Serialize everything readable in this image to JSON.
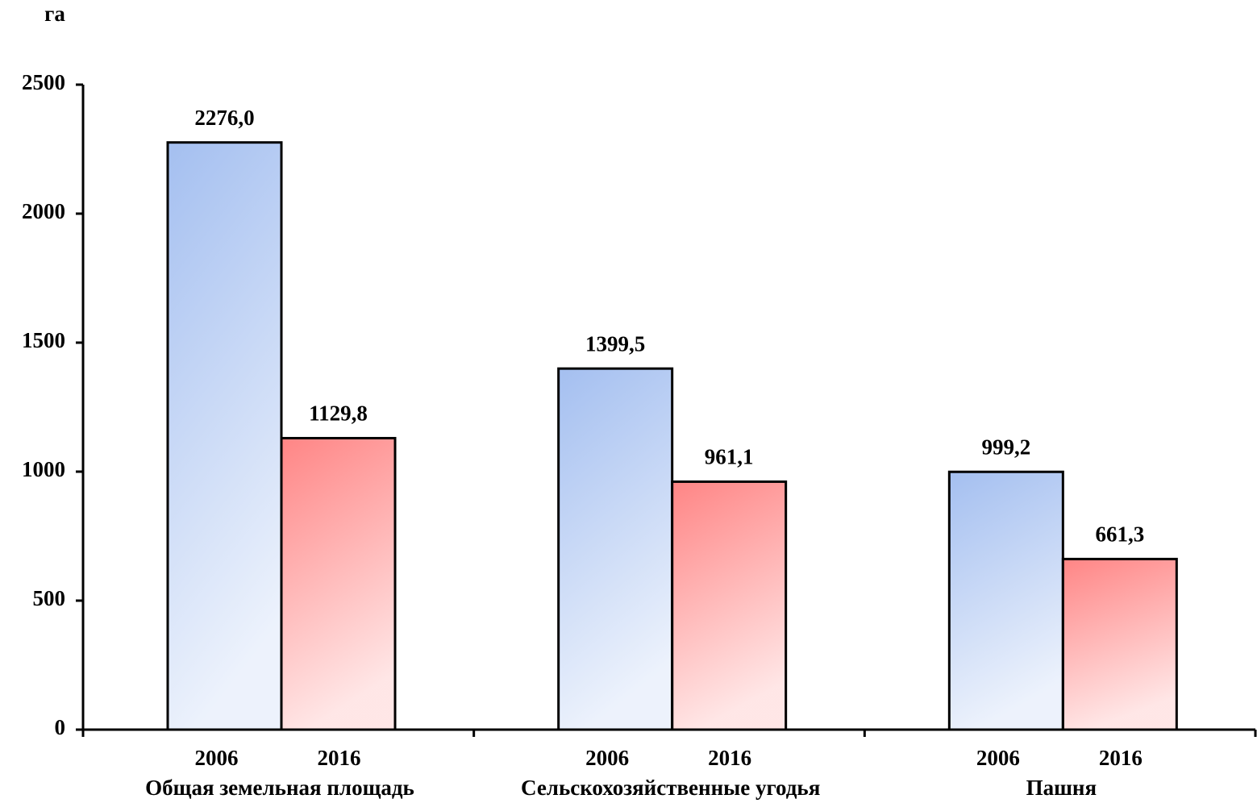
{
  "chart_data": {
    "type": "bar",
    "y_label": "га",
    "categories": [
      "Общая земельная площадь",
      "Сельскохозяйственные угодья",
      "Пашня"
    ],
    "series": [
      {
        "name": "2006",
        "color": "#a4bff0",
        "values": [
          2276.0,
          1399.5,
          999.2
        ],
        "value_labels": [
          "2276,0",
          "1399,5",
          "999,2"
        ]
      },
      {
        "name": "2016",
        "color": "#ff8585",
        "values": [
          1129.8,
          961.1,
          661.3
        ],
        "value_labels": [
          "1129,8",
          "961,1",
          "661,3"
        ]
      }
    ],
    "ylim": [
      0,
      2500
    ],
    "yticks": [
      0,
      500,
      1000,
      1500,
      2000,
      2500
    ],
    "grid": false
  }
}
